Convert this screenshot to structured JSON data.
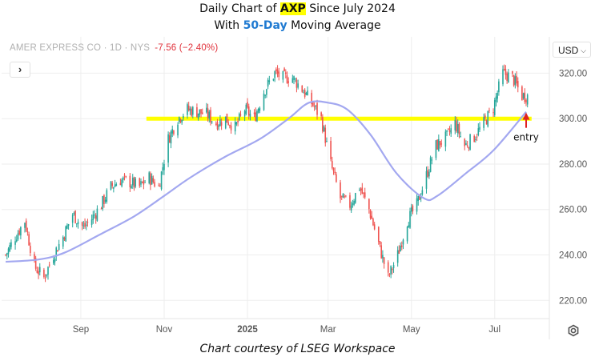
{
  "header": {
    "title_prefix": "Daily Chart of ",
    "ticker": "AXP",
    "title_suffix": " Since July 2024",
    "subtitle_prefix": "With ",
    "ma_label": "50-Day",
    "subtitle_suffix": " Moving Average"
  },
  "legend": {
    "instrument": "AMER EXPRESS CO · 1D · NYS",
    "change": "-7.56 (−2.40%)"
  },
  "currency": {
    "label": "USD",
    "icon": "chevron-down-icon"
  },
  "expand_button": {
    "label": "›"
  },
  "settings_icon": "gear-icon",
  "annotation": {
    "label": "entry",
    "color": "#e0201f"
  },
  "caption": "Chart courtesy of LSEG Workspace",
  "colors": {
    "up": "#26a69a",
    "down": "#ef5350",
    "ma": "#a3a8f0",
    "support_line": "#ffff00",
    "grid": "#eeeeee",
    "axis_text": "#555555"
  },
  "chart_data": {
    "type": "candlestick",
    "x_ticks": [
      {
        "label": "Sep",
        "date": "2024-09-01"
      },
      {
        "label": "Nov",
        "date": "2024-11-01"
      },
      {
        "label": "2025",
        "date": "2025-01-01"
      },
      {
        "label": "Mar",
        "date": "2025-03-01"
      },
      {
        "label": "May",
        "date": "2025-05-01"
      },
      {
        "label": "Jul",
        "date": "2025-07-01"
      }
    ],
    "y_ticks": [
      220,
      240,
      260,
      280,
      300,
      320
    ],
    "x_range": [
      "2024-07-05",
      "2025-08-10"
    ],
    "ylim": [
      212,
      336
    ],
    "grid": true,
    "support_level": 300,
    "support_range": [
      "2024-10-19",
      "2025-07-28"
    ],
    "entry": {
      "date": "2025-07-24",
      "price": 303
    },
    "price": {
      "dates": [
        "2024-07-08",
        "2024-07-15",
        "2024-07-22",
        "2024-07-29",
        "2024-08-05",
        "2024-08-12",
        "2024-08-19",
        "2024-08-26",
        "2024-09-03",
        "2024-09-09",
        "2024-09-16",
        "2024-09-23",
        "2024-09-30",
        "2024-10-07",
        "2024-10-14",
        "2024-10-21",
        "2024-10-28",
        "2024-11-04",
        "2024-11-11",
        "2024-11-18",
        "2024-11-25",
        "2024-12-02",
        "2024-12-09",
        "2024-12-16",
        "2024-12-23",
        "2024-12-30",
        "2025-01-06",
        "2025-01-13",
        "2025-01-21",
        "2025-01-27",
        "2025-02-03",
        "2025-02-10",
        "2025-02-18",
        "2025-02-24",
        "2025-03-03",
        "2025-03-10",
        "2025-03-17",
        "2025-03-24",
        "2025-03-31",
        "2025-04-07",
        "2025-04-14",
        "2025-04-21",
        "2025-04-28",
        "2025-05-05",
        "2025-05-12",
        "2025-05-19",
        "2025-05-27",
        "2025-06-02",
        "2025-06-09",
        "2025-06-16",
        "2025-06-23",
        "2025-06-30",
        "2025-07-07",
        "2025-07-14",
        "2025-07-21"
      ],
      "close": [
        240,
        248,
        255,
        235,
        230,
        240,
        248,
        258,
        252,
        256,
        262,
        270,
        273,
        272,
        270,
        274,
        270,
        291,
        300,
        304,
        303,
        302,
        298,
        300,
        296,
        304,
        300,
        312,
        320,
        318,
        318,
        313,
        306,
        300,
        280,
        265,
        262,
        270,
        260,
        245,
        230,
        240,
        255,
        262,
        275,
        288,
        292,
        298,
        288,
        292,
        298,
        305,
        320,
        318,
        310
      ]
    },
    "series": [
      {
        "name": "50-Day Moving Average",
        "dates": [
          "2024-07-08",
          "2024-08-01",
          "2024-08-20",
          "2024-09-15",
          "2024-10-10",
          "2024-11-01",
          "2024-11-20",
          "2024-12-15",
          "2025-01-10",
          "2025-01-31",
          "2025-02-15",
          "2025-03-01",
          "2025-03-15",
          "2025-04-01",
          "2025-04-20",
          "2025-05-10",
          "2025-05-20",
          "2025-06-10",
          "2025-06-30",
          "2025-07-24"
        ],
        "values": [
          237,
          238,
          241,
          249,
          257,
          266,
          274,
          283,
          291,
          300,
          307,
          307,
          304,
          293,
          276,
          265,
          266,
          276,
          286,
          303
        ]
      }
    ]
  }
}
